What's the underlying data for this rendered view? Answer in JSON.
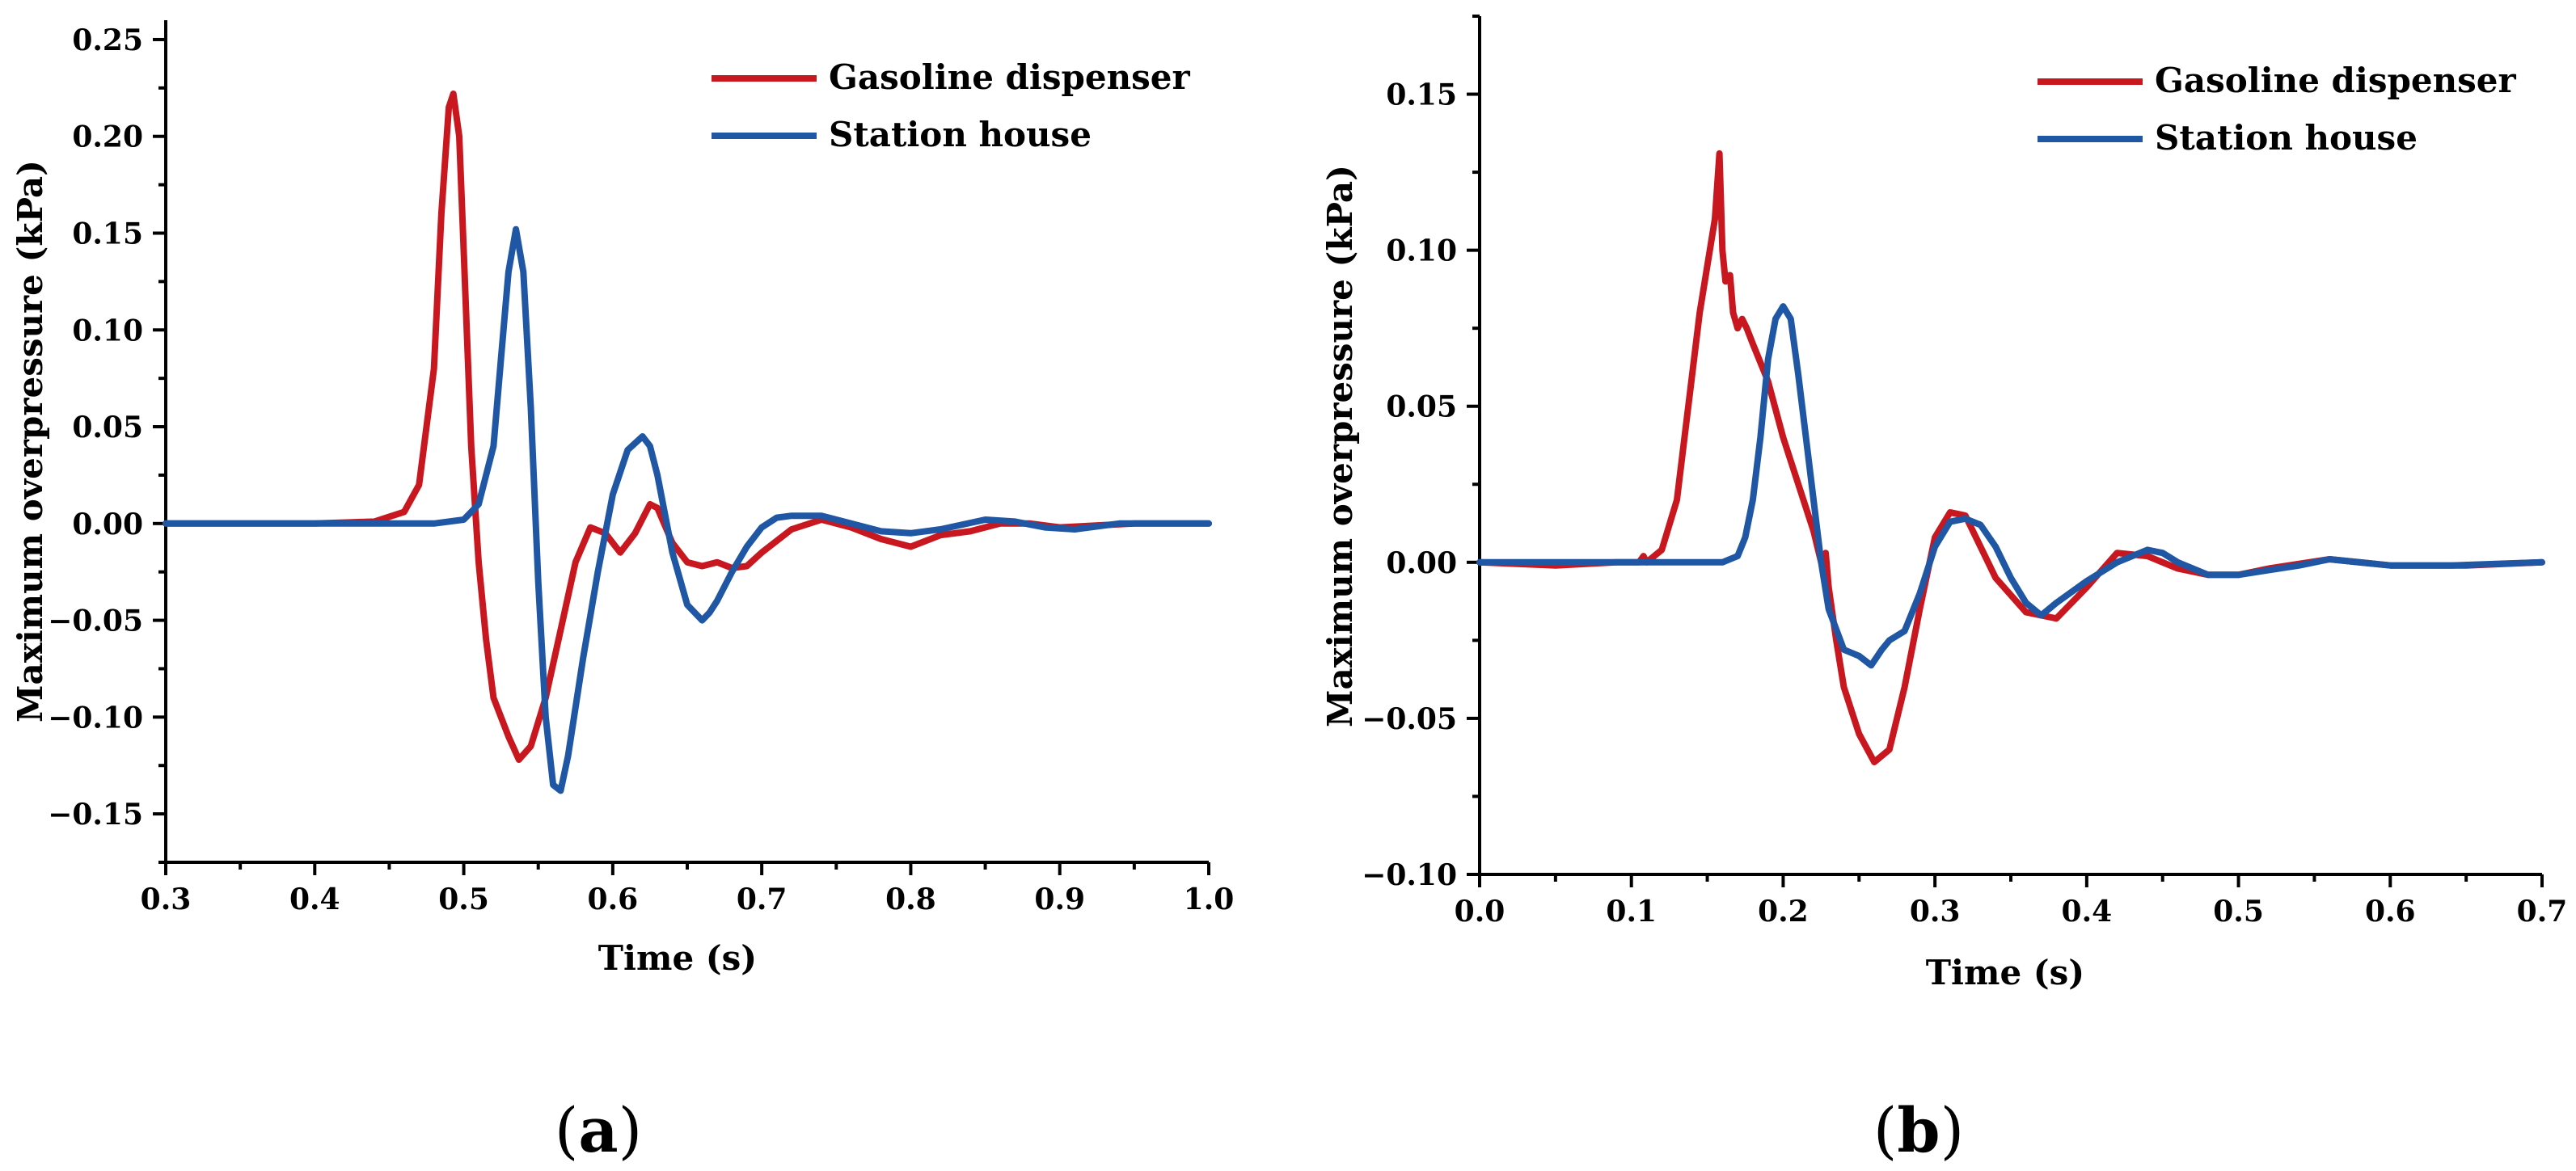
{
  "colors": {
    "gasoline": "#c8171e",
    "station": "#1f57a4"
  },
  "chart_data": [
    {
      "type": "line",
      "panel_label": "a",
      "xlabel": "Time (s)",
      "ylabel": "Maximum overpressure (kPa)",
      "xlim": [
        0.3,
        1.0
      ],
      "ylim": [
        -0.175,
        0.26
      ],
      "xticks": [
        0.3,
        0.4,
        0.5,
        0.6,
        0.7,
        0.8,
        0.9,
        1.0
      ],
      "xtick_labels": [
        "0.3",
        "0.4",
        "0.5",
        "0.6",
        "0.7",
        "0.8",
        "0.9",
        "1.0"
      ],
      "yticks": [
        -0.15,
        -0.1,
        -0.05,
        0.0,
        0.05,
        0.1,
        0.15,
        0.2,
        0.25
      ],
      "ytick_labels": [
        "−0.15",
        "−0.10",
        "−0.05",
        "0.00",
        "0.05",
        "0.10",
        "0.15",
        "0.20",
        "0.25"
      ],
      "legend_position": "top-right",
      "series": [
        {
          "name": "Gasoline dispenser",
          "color_key": "gasoline",
          "x": [
            0.3,
            0.4,
            0.44,
            0.46,
            0.47,
            0.48,
            0.485,
            0.49,
            0.493,
            0.497,
            0.5,
            0.505,
            0.51,
            0.515,
            0.52,
            0.53,
            0.537,
            0.545,
            0.555,
            0.565,
            0.575,
            0.585,
            0.595,
            0.605,
            0.615,
            0.625,
            0.63,
            0.64,
            0.65,
            0.66,
            0.67,
            0.68,
            0.69,
            0.7,
            0.72,
            0.74,
            0.76,
            0.78,
            0.8,
            0.82,
            0.84,
            0.86,
            0.88,
            0.9,
            0.95,
            1.0
          ],
          "y": [
            0.0,
            0.0,
            0.001,
            0.006,
            0.02,
            0.08,
            0.16,
            0.215,
            0.222,
            0.2,
            0.14,
            0.04,
            -0.02,
            -0.06,
            -0.09,
            -0.11,
            -0.122,
            -0.115,
            -0.09,
            -0.055,
            -0.02,
            -0.002,
            -0.005,
            -0.015,
            -0.005,
            0.01,
            0.008,
            -0.01,
            -0.02,
            -0.022,
            -0.02,
            -0.023,
            -0.022,
            -0.015,
            -0.003,
            0.002,
            -0.002,
            -0.008,
            -0.012,
            -0.006,
            -0.004,
            0.0,
            0.0,
            -0.002,
            0.0,
            0.0
          ]
        },
        {
          "name": "Station house",
          "color_key": "station",
          "x": [
            0.3,
            0.48,
            0.5,
            0.51,
            0.52,
            0.525,
            0.53,
            0.535,
            0.54,
            0.545,
            0.55,
            0.555,
            0.56,
            0.565,
            0.57,
            0.58,
            0.59,
            0.6,
            0.61,
            0.62,
            0.625,
            0.63,
            0.64,
            0.65,
            0.66,
            0.665,
            0.67,
            0.68,
            0.69,
            0.7,
            0.71,
            0.72,
            0.74,
            0.76,
            0.78,
            0.8,
            0.82,
            0.85,
            0.87,
            0.89,
            0.91,
            0.94,
            1.0
          ],
          "y": [
            0.0,
            0.0,
            0.002,
            0.01,
            0.04,
            0.085,
            0.13,
            0.152,
            0.13,
            0.06,
            -0.03,
            -0.1,
            -0.135,
            -0.138,
            -0.12,
            -0.07,
            -0.025,
            0.015,
            0.038,
            0.045,
            0.04,
            0.025,
            -0.015,
            -0.042,
            -0.05,
            -0.046,
            -0.04,
            -0.025,
            -0.012,
            -0.002,
            0.003,
            0.004,
            0.004,
            0.0,
            -0.004,
            -0.005,
            -0.003,
            0.002,
            0.001,
            -0.002,
            -0.003,
            0.0,
            0.0
          ]
        }
      ]
    },
    {
      "type": "line",
      "panel_label": "b",
      "xlabel": "Time (s)",
      "ylabel": "Maximum overpressure (kPa)",
      "xlim": [
        0.0,
        0.7
      ],
      "ylim": [
        -0.1,
        0.175
      ],
      "xticks": [
        0.0,
        0.1,
        0.2,
        0.3,
        0.4,
        0.5,
        0.6,
        0.7
      ],
      "xtick_labels": [
        "0.0",
        "0.1",
        "0.2",
        "0.3",
        "0.4",
        "0.5",
        "0.6",
        "0.7"
      ],
      "yticks": [
        -0.1,
        -0.05,
        0.0,
        0.05,
        0.1,
        0.15
      ],
      "ytick_labels": [
        "−0.10",
        "−0.05",
        "0.00",
        "0.05",
        "0.10",
        "0.15"
      ],
      "legend_position": "top-right",
      "series": [
        {
          "name": "Gasoline dispenser",
          "color_key": "gasoline",
          "x": [
            0.0,
            0.05,
            0.09,
            0.105,
            0.108,
            0.11,
            0.12,
            0.13,
            0.135,
            0.14,
            0.145,
            0.15,
            0.155,
            0.158,
            0.16,
            0.162,
            0.165,
            0.167,
            0.17,
            0.173,
            0.176,
            0.18,
            0.19,
            0.2,
            0.21,
            0.22,
            0.225,
            0.228,
            0.23,
            0.235,
            0.24,
            0.25,
            0.26,
            0.27,
            0.28,
            0.29,
            0.3,
            0.31,
            0.32,
            0.33,
            0.34,
            0.36,
            0.38,
            0.4,
            0.42,
            0.44,
            0.46,
            0.48,
            0.5,
            0.52,
            0.56,
            0.6,
            0.65,
            0.7
          ],
          "y": [
            0.0,
            -0.001,
            0.0,
            0.0,
            0.002,
            0.0,
            0.004,
            0.02,
            0.04,
            0.06,
            0.08,
            0.095,
            0.11,
            0.131,
            0.1,
            0.09,
            0.092,
            0.08,
            0.075,
            0.078,
            0.075,
            0.07,
            0.058,
            0.04,
            0.025,
            0.01,
            0.0,
            0.003,
            -0.008,
            -0.025,
            -0.04,
            -0.055,
            -0.064,
            -0.06,
            -0.04,
            -0.015,
            0.008,
            0.016,
            0.015,
            0.005,
            -0.005,
            -0.016,
            -0.018,
            -0.008,
            0.003,
            0.002,
            -0.002,
            -0.004,
            -0.004,
            -0.002,
            0.001,
            -0.001,
            -0.001,
            0.0
          ]
        },
        {
          "name": "Station house",
          "color_key": "station",
          "x": [
            0.0,
            0.1,
            0.15,
            0.16,
            0.17,
            0.175,
            0.18,
            0.185,
            0.19,
            0.195,
            0.2,
            0.205,
            0.21,
            0.215,
            0.22,
            0.225,
            0.23,
            0.24,
            0.25,
            0.258,
            0.265,
            0.27,
            0.28,
            0.29,
            0.3,
            0.31,
            0.32,
            0.33,
            0.34,
            0.35,
            0.36,
            0.37,
            0.38,
            0.4,
            0.42,
            0.44,
            0.45,
            0.46,
            0.48,
            0.5,
            0.54,
            0.56,
            0.6,
            0.64,
            0.7
          ],
          "y": [
            0.0,
            0.0,
            0.0,
            0.0,
            0.002,
            0.008,
            0.02,
            0.04,
            0.065,
            0.078,
            0.082,
            0.078,
            0.06,
            0.04,
            0.02,
            0.0,
            -0.015,
            -0.028,
            -0.03,
            -0.033,
            -0.028,
            -0.025,
            -0.022,
            -0.01,
            0.005,
            0.013,
            0.014,
            0.012,
            0.005,
            -0.005,
            -0.013,
            -0.017,
            -0.013,
            -0.006,
            0.0,
            0.004,
            0.003,
            0.0,
            -0.004,
            -0.004,
            -0.001,
            0.001,
            -0.001,
            -0.001,
            0.0
          ]
        }
      ]
    }
  ]
}
